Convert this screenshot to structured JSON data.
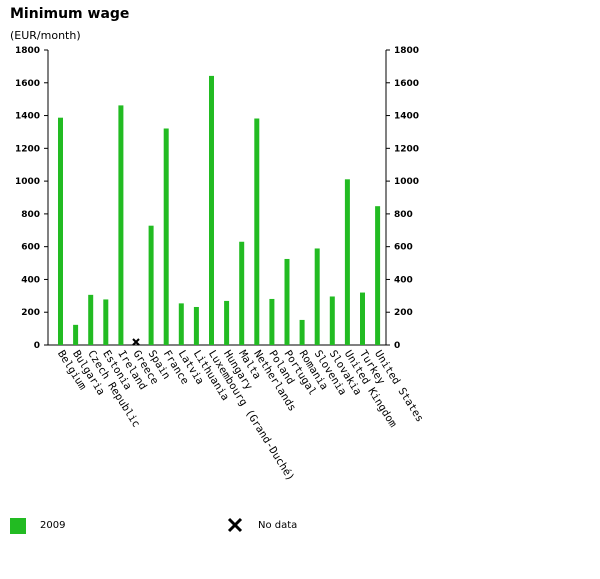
{
  "chart_data": {
    "type": "bar",
    "title": "Minimum wage",
    "subtitle": "(EUR/month)",
    "categories": [
      "Belgium",
      "Bulgaria",
      "Czech Republic",
      "Estonia",
      "Ireland",
      "Greece",
      "Spain",
      "France",
      "Latvia",
      "Lithuania",
      "Luxembourg (Grand-Duché)",
      "Hungary",
      "Malta",
      "Netherlands",
      "Poland",
      "Portugal",
      "Romania",
      "Slovenia",
      "Slovakia",
      "United Kingdom",
      "Turkey",
      "United States"
    ],
    "series": [
      {
        "name": "2009",
        "color": "#22bb22",
        "values": [
          1387,
          123,
          306,
          278,
          1462,
          null,
          728,
          1321,
          254,
          232,
          1642,
          269,
          630,
          1382,
          281,
          525,
          153,
          589,
          296,
          1011,
          320,
          847
        ]
      }
    ],
    "no_data_marker": [
      "Greece"
    ],
    "ylim": [
      0,
      1800
    ],
    "yticks": [
      0,
      200,
      400,
      600,
      800,
      1000,
      1200,
      1400,
      1600,
      1800
    ],
    "ytick_labels": [
      "0",
      "200",
      "400",
      "600",
      "800",
      "1000",
      "1200",
      "1400",
      "1600",
      "1800"
    ],
    "grid": false,
    "legend_placement": "bottom-left",
    "legend": [
      {
        "label": "2009",
        "kind": "swatch",
        "color": "#22bb22"
      },
      {
        "label": "No data",
        "kind": "x-marker"
      }
    ]
  }
}
